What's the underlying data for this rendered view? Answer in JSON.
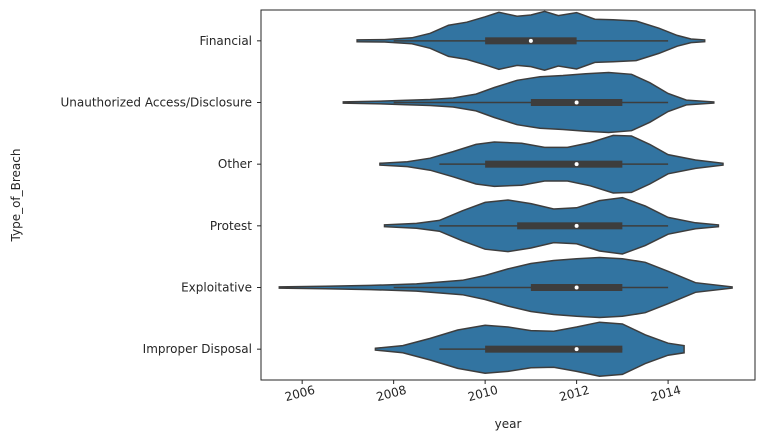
{
  "chart_data": {
    "type": "violin",
    "orientation": "horizontal",
    "xlabel": "year",
    "ylabel": "Type_of_Breach",
    "xlim": [
      2005.1,
      2015.9
    ],
    "x_ticks": [
      2006,
      2008,
      2010,
      2012,
      2014
    ],
    "x_tick_labels": [
      "2006",
      "2008",
      "2010",
      "2012",
      "2014"
    ],
    "x_tick_rotation_deg": -15,
    "violin_color": "#3274a1",
    "line_color": "#3d3d3d",
    "grid": false,
    "legend": "none",
    "categories": [
      "Financial",
      "Unauthorized Access/Disclosure",
      "Other",
      "Protest",
      "Exploitative",
      "Improper Disposal"
    ],
    "violins": [
      {
        "category": "Financial",
        "whisker": [
          2008.0,
          2014.0
        ],
        "q1": 2010.0,
        "median": 2011.0,
        "q3": 2012.0,
        "density": [
          [
            2007.2,
            0.03
          ],
          [
            2007.8,
            0.04
          ],
          [
            2008.4,
            0.1
          ],
          [
            2008.8,
            0.25
          ],
          [
            2009.2,
            0.52
          ],
          [
            2009.6,
            0.62
          ],
          [
            2010.0,
            0.8
          ],
          [
            2010.3,
            0.95
          ],
          [
            2010.7,
            0.82
          ],
          [
            2011.0,
            0.86
          ],
          [
            2011.3,
            0.98
          ],
          [
            2011.6,
            0.84
          ],
          [
            2012.0,
            0.94
          ],
          [
            2012.4,
            0.72
          ],
          [
            2012.8,
            0.7
          ],
          [
            2013.3,
            0.66
          ],
          [
            2013.8,
            0.42
          ],
          [
            2014.2,
            0.18
          ],
          [
            2014.5,
            0.06
          ],
          [
            2014.8,
            0.03
          ]
        ]
      },
      {
        "category": "Unauthorized Access/Disclosure",
        "whisker": [
          2008.0,
          2014.0
        ],
        "q1": 2011.0,
        "median": 2012.0,
        "q3": 2013.0,
        "density": [
          [
            2006.9,
            0.02
          ],
          [
            2007.6,
            0.04
          ],
          [
            2008.2,
            0.07
          ],
          [
            2008.8,
            0.1
          ],
          [
            2009.3,
            0.15
          ],
          [
            2009.8,
            0.28
          ],
          [
            2010.2,
            0.5
          ],
          [
            2010.7,
            0.74
          ],
          [
            2011.2,
            0.86
          ],
          [
            2011.7,
            0.9
          ],
          [
            2012.2,
            0.96
          ],
          [
            2012.7,
            1.0
          ],
          [
            2013.2,
            0.94
          ],
          [
            2013.6,
            0.66
          ],
          [
            2014.0,
            0.3
          ],
          [
            2014.4,
            0.08
          ],
          [
            2015.0,
            0.02
          ]
        ]
      },
      {
        "category": "Other",
        "whisker": [
          2009.0,
          2014.0
        ],
        "q1": 2010.0,
        "median": 2012.0,
        "q3": 2013.0,
        "density": [
          [
            2007.7,
            0.03
          ],
          [
            2008.3,
            0.08
          ],
          [
            2008.8,
            0.2
          ],
          [
            2009.3,
            0.42
          ],
          [
            2009.8,
            0.66
          ],
          [
            2010.2,
            0.74
          ],
          [
            2010.8,
            0.7
          ],
          [
            2011.3,
            0.56
          ],
          [
            2011.8,
            0.56
          ],
          [
            2012.3,
            0.72
          ],
          [
            2012.8,
            0.96
          ],
          [
            2013.2,
            0.94
          ],
          [
            2013.6,
            0.66
          ],
          [
            2014.0,
            0.32
          ],
          [
            2014.6,
            0.14
          ],
          [
            2015.2,
            0.03
          ]
        ]
      },
      {
        "category": "Protest",
        "whisker": [
          2009.0,
          2014.0
        ],
        "q1": 2010.7,
        "median": 2012.0,
        "q3": 2013.0,
        "density": [
          [
            2007.8,
            0.03
          ],
          [
            2008.5,
            0.08
          ],
          [
            2009.0,
            0.18
          ],
          [
            2009.5,
            0.5
          ],
          [
            2010.0,
            0.78
          ],
          [
            2010.5,
            0.86
          ],
          [
            2011.0,
            0.74
          ],
          [
            2011.5,
            0.56
          ],
          [
            2012.0,
            0.6
          ],
          [
            2012.5,
            0.84
          ],
          [
            2013.0,
            0.94
          ],
          [
            2013.5,
            0.66
          ],
          [
            2014.0,
            0.28
          ],
          [
            2014.6,
            0.1
          ],
          [
            2015.1,
            0.03
          ]
        ]
      },
      {
        "category": "Exploitative",
        "whisker": [
          2008.0,
          2014.0
        ],
        "q1": 2011.0,
        "median": 2012.0,
        "q3": 2013.0,
        "density": [
          [
            2005.5,
            0.02
          ],
          [
            2006.5,
            0.04
          ],
          [
            2007.5,
            0.07
          ],
          [
            2008.5,
            0.12
          ],
          [
            2009.5,
            0.24
          ],
          [
            2010.0,
            0.4
          ],
          [
            2010.5,
            0.62
          ],
          [
            2011.0,
            0.8
          ],
          [
            2011.5,
            0.9
          ],
          [
            2012.0,
            0.96
          ],
          [
            2012.5,
            1.0
          ],
          [
            2013.0,
            0.96
          ],
          [
            2013.5,
            0.84
          ],
          [
            2014.0,
            0.54
          ],
          [
            2014.6,
            0.16
          ],
          [
            2015.4,
            0.02
          ]
        ]
      },
      {
        "category": "Improper Disposal",
        "whisker": [
          2009.0,
          2013.0
        ],
        "q1": 2010.0,
        "median": 2012.0,
        "q3": 2013.0,
        "density": [
          [
            2007.6,
            0.03
          ],
          [
            2008.2,
            0.12
          ],
          [
            2008.8,
            0.36
          ],
          [
            2009.4,
            0.64
          ],
          [
            2010.0,
            0.8
          ],
          [
            2010.5,
            0.74
          ],
          [
            2011.0,
            0.62
          ],
          [
            2011.5,
            0.6
          ],
          [
            2012.0,
            0.74
          ],
          [
            2012.5,
            0.9
          ],
          [
            2013.0,
            0.84
          ],
          [
            2013.5,
            0.48
          ],
          [
            2014.0,
            0.2
          ],
          [
            2014.35,
            0.12
          ]
        ]
      }
    ]
  }
}
